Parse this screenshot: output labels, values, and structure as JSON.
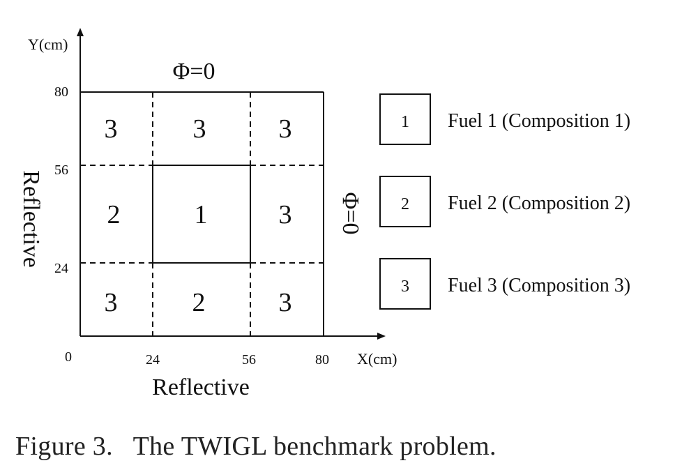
{
  "axes": {
    "x_label": "X(cm)",
    "y_label": "Y(cm)",
    "origin_label": "0",
    "x_ticks": [
      "24",
      "56",
      "80"
    ],
    "y_ticks": [
      "80",
      "56",
      "24"
    ]
  },
  "boundaries": {
    "top": "Φ=0",
    "right": "Φ=0",
    "left": "Reflective",
    "bottom": "Reflective"
  },
  "regions": [
    {
      "row": 0,
      "col": 0,
      "composition": "3"
    },
    {
      "row": 0,
      "col": 1,
      "composition": "3"
    },
    {
      "row": 0,
      "col": 2,
      "composition": "3"
    },
    {
      "row": 1,
      "col": 0,
      "composition": "2"
    },
    {
      "row": 1,
      "col": 1,
      "composition": "1"
    },
    {
      "row": 1,
      "col": 2,
      "composition": "3"
    },
    {
      "row": 2,
      "col": 0,
      "composition": "3"
    },
    {
      "row": 2,
      "col": 1,
      "composition": "2"
    },
    {
      "row": 2,
      "col": 2,
      "composition": "3"
    }
  ],
  "legend": [
    {
      "key": "1",
      "label": "Fuel 1 (Composition 1)"
    },
    {
      "key": "2",
      "label": "Fuel 2 (Composition 2)"
    },
    {
      "key": "3",
      "label": "Fuel 3 (Composition 3)"
    }
  ],
  "caption": "Figure 3.   The TWIGL benchmark problem."
}
